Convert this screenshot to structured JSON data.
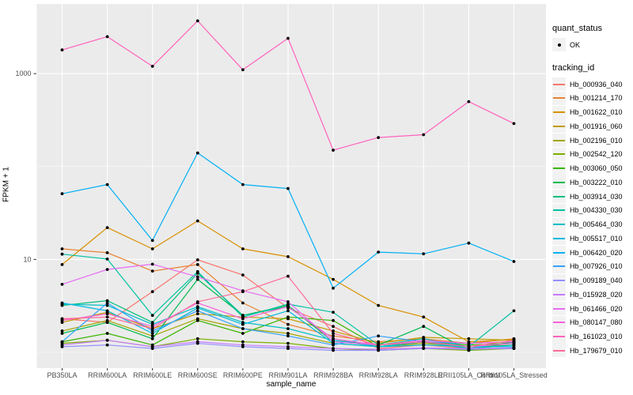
{
  "figure": {
    "x_axis_title": "sample_name",
    "y_axis_title": "FPKM + 1",
    "legend": {
      "quant_status_title": "quant_status",
      "quant_status_items": [
        {
          "label": "OK",
          "symbol": "point"
        }
      ],
      "tracking_id_title": "tracking_id"
    }
  },
  "chart_data": {
    "type": "line",
    "title": "",
    "xlabel": "sample_name",
    "ylabel": "FPKM + 1",
    "y_scale": "log10",
    "ylim": [
      1,
      4000
    ],
    "grid": "on",
    "legend_position": "right",
    "panel_background": "#EBEBEB",
    "gridline_color": "#FFFFFF",
    "point_color": "#000000",
    "axis_text_color": "#4D4D4D",
    "y_ticks": [
      {
        "label": "1000",
        "value": 1000
      },
      {
        "label": "10",
        "value": 10
      }
    ],
    "y_minor_ticks": [
      100,
      1
    ],
    "categories": [
      "PB350LA",
      "RRIM600LA",
      "RRIM600LE",
      "RRIM600SE",
      "RRIM600PE",
      "RRIM901LA",
      "RRIM928BA",
      "RRIM928LA",
      "RRIM928LE",
      "RRII105LA_Control",
      "RRII105LA_Stressed"
    ],
    "series": [
      {
        "name": "Hb_000936_040",
        "color": "#F8766D",
        "values": [
          2.3,
          2.1,
          4.5,
          9.9,
          6.8,
          3.0,
          1.9,
          1.1,
          1.2,
          1.1,
          1.3
        ]
      },
      {
        "name": "Hb_001214_170",
        "color": "#EA8331",
        "values": [
          13,
          11.8,
          7.5,
          8.8,
          3.4,
          2.0,
          1.5,
          1.3,
          1.4,
          1.25,
          1.4
        ]
      },
      {
        "name": "Hb_001622_010",
        "color": "#D89000",
        "values": [
          8.8,
          22,
          13,
          26,
          13,
          10.7,
          6.1,
          3.2,
          2.4,
          1.3,
          1.37
        ]
      },
      {
        "name": "Hb_001916_060",
        "color": "#C09B00",
        "values": [
          2.1,
          2.7,
          1.8,
          2.6,
          2.4,
          2.3,
          1.7,
          1.25,
          1.45,
          1.4,
          1.35
        ]
      },
      {
        "name": "Hb_002196_010",
        "color": "#A3A500",
        "values": [
          1.7,
          2.2,
          1.5,
          2.3,
          1.8,
          1.6,
          1.25,
          1.15,
          1.25,
          1.15,
          1.2
        ]
      },
      {
        "name": "Hb_002542_120",
        "color": "#7CAE00",
        "values": [
          1.25,
          1.35,
          1.15,
          1.4,
          1.3,
          1.25,
          1.1,
          1.05,
          1.1,
          1.05,
          1.1
        ]
      },
      {
        "name": "Hb_003060_050",
        "color": "#39B600",
        "values": [
          1.3,
          1.6,
          1.2,
          2.2,
          1.6,
          2.4,
          2.2,
          1.15,
          1.3,
          1.2,
          1.25
        ]
      },
      {
        "name": "Hb_003222_010",
        "color": "#00BB4E",
        "values": [
          1.6,
          2.1,
          1.4,
          6.1,
          2.5,
          3.2,
          1.3,
          1.2,
          1.9,
          1.05,
          1.3
        ]
      },
      {
        "name": "Hb_003914_030",
        "color": "#00BF7D",
        "values": [
          3.2,
          3.6,
          2.1,
          7.1,
          2.5,
          3.1,
          1.4,
          1.15,
          1.3,
          1.1,
          1.2
        ]
      },
      {
        "name": "Hb_004330_030",
        "color": "#00C1A3",
        "values": [
          11.4,
          10.1,
          2.5,
          7.4,
          2.4,
          3.3,
          2.7,
          1.2,
          1.4,
          1.15,
          2.8
        ]
      },
      {
        "name": "Hb_005464_030",
        "color": "#00BFC4",
        "values": [
          3.3,
          3.2,
          2.0,
          3.1,
          2.1,
          1.8,
          1.35,
          1.15,
          1.3,
          1.1,
          1.2
        ]
      },
      {
        "name": "Hb_005517_010",
        "color": "#00BAE0",
        "values": [
          3.4,
          2.8,
          1.6,
          3.0,
          2.0,
          2.8,
          1.25,
          1.15,
          1.2,
          1.15,
          1.15
        ]
      },
      {
        "name": "Hb_006420_020",
        "color": "#00B0F6",
        "values": [
          51,
          64,
          16,
          140,
          64,
          58,
          4.9,
          12,
          11.5,
          15,
          9.5
        ]
      },
      {
        "name": "Hb_007926_010",
        "color": "#35A2FF",
        "values": [
          1.3,
          3.4,
          1.7,
          2.8,
          1.8,
          1.5,
          1.2,
          1.5,
          1.3,
          1.25,
          1.3
        ]
      },
      {
        "name": "Hb_009189_040",
        "color": "#9590FF",
        "values": [
          1.15,
          1.2,
          1.1,
          1.25,
          1.15,
          1.1,
          1.05,
          1.05,
          1.1,
          1.08,
          1.1
        ]
      },
      {
        "name": "Hb_015928_020",
        "color": "#C77CFF",
        "values": [
          1.2,
          1.35,
          1.15,
          1.3,
          1.2,
          1.15,
          1.1,
          1.08,
          1.12,
          1.1,
          1.12
        ]
      },
      {
        "name": "Hb_061466_020",
        "color": "#E76BF3",
        "values": [
          5.4,
          7.8,
          8.9,
          6.5,
          4.6,
          3.5,
          1.3,
          1.2,
          1.3,
          1.15,
          1.25
        ]
      },
      {
        "name": "Hb_080147_080",
        "color": "#FA62DB",
        "values": [
          2.2,
          2.6,
          1.9,
          3.4,
          2.3,
          3.1,
          1.4,
          1.2,
          1.35,
          1.25,
          1.3
        ]
      },
      {
        "name": "Hb_161023_010",
        "color": "#FF62BC",
        "values": [
          1800,
          2500,
          1200,
          3700,
          1100,
          2400,
          150,
          205,
          220,
          500,
          290
        ]
      },
      {
        "name": "Hb_179679_010",
        "color": "#FF6A98",
        "values": [
          2.3,
          2.4,
          1.8,
          3.5,
          4.5,
          6.6,
          1.6,
          1.2,
          1.3,
          1.15,
          1.35
        ]
      }
    ]
  }
}
